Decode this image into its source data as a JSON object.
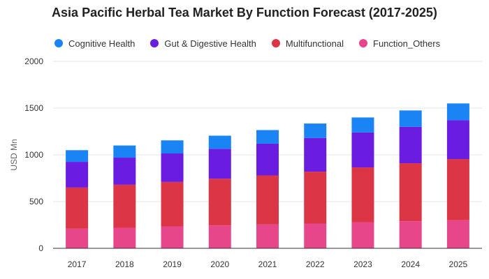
{
  "chart_data": {
    "type": "bar",
    "stacked": true,
    "title": "Asia Pacific Herbal Tea Market By Function Forecast (2017-2025)",
    "xlabel": "",
    "ylabel": "USD Mn",
    "ylim": [
      0,
      2000
    ],
    "yticks": [
      "0",
      "500",
      "1000",
      "1500",
      "2000"
    ],
    "grid": true,
    "legend_position": "top-left",
    "categories": [
      "2017",
      "2018",
      "2019",
      "2020",
      "2021",
      "2022",
      "2023",
      "2024",
      "2025"
    ],
    "series": [
      {
        "name": "Function_Others",
        "color": "#e8468a",
        "values": [
          210,
          220,
          235,
          245,
          255,
          265,
          280,
          290,
          300
        ]
      },
      {
        "name": "Multifunctional",
        "color": "#dc3545",
        "values": [
          440,
          460,
          475,
          500,
          525,
          555,
          585,
          620,
          655
        ]
      },
      {
        "name": "Gut & Digestive Health",
        "color": "#6a1de0",
        "values": [
          275,
          290,
          305,
          320,
          340,
          360,
          375,
          390,
          415
        ]
      },
      {
        "name": "Cognitive Health",
        "color": "#1a84f5",
        "values": [
          125,
          130,
          140,
          140,
          145,
          155,
          160,
          175,
          180
        ]
      }
    ],
    "legend_order": [
      "Cognitive Health",
      "Gut & Digestive Health",
      "Multifunctional",
      "Function_Others"
    ]
  }
}
